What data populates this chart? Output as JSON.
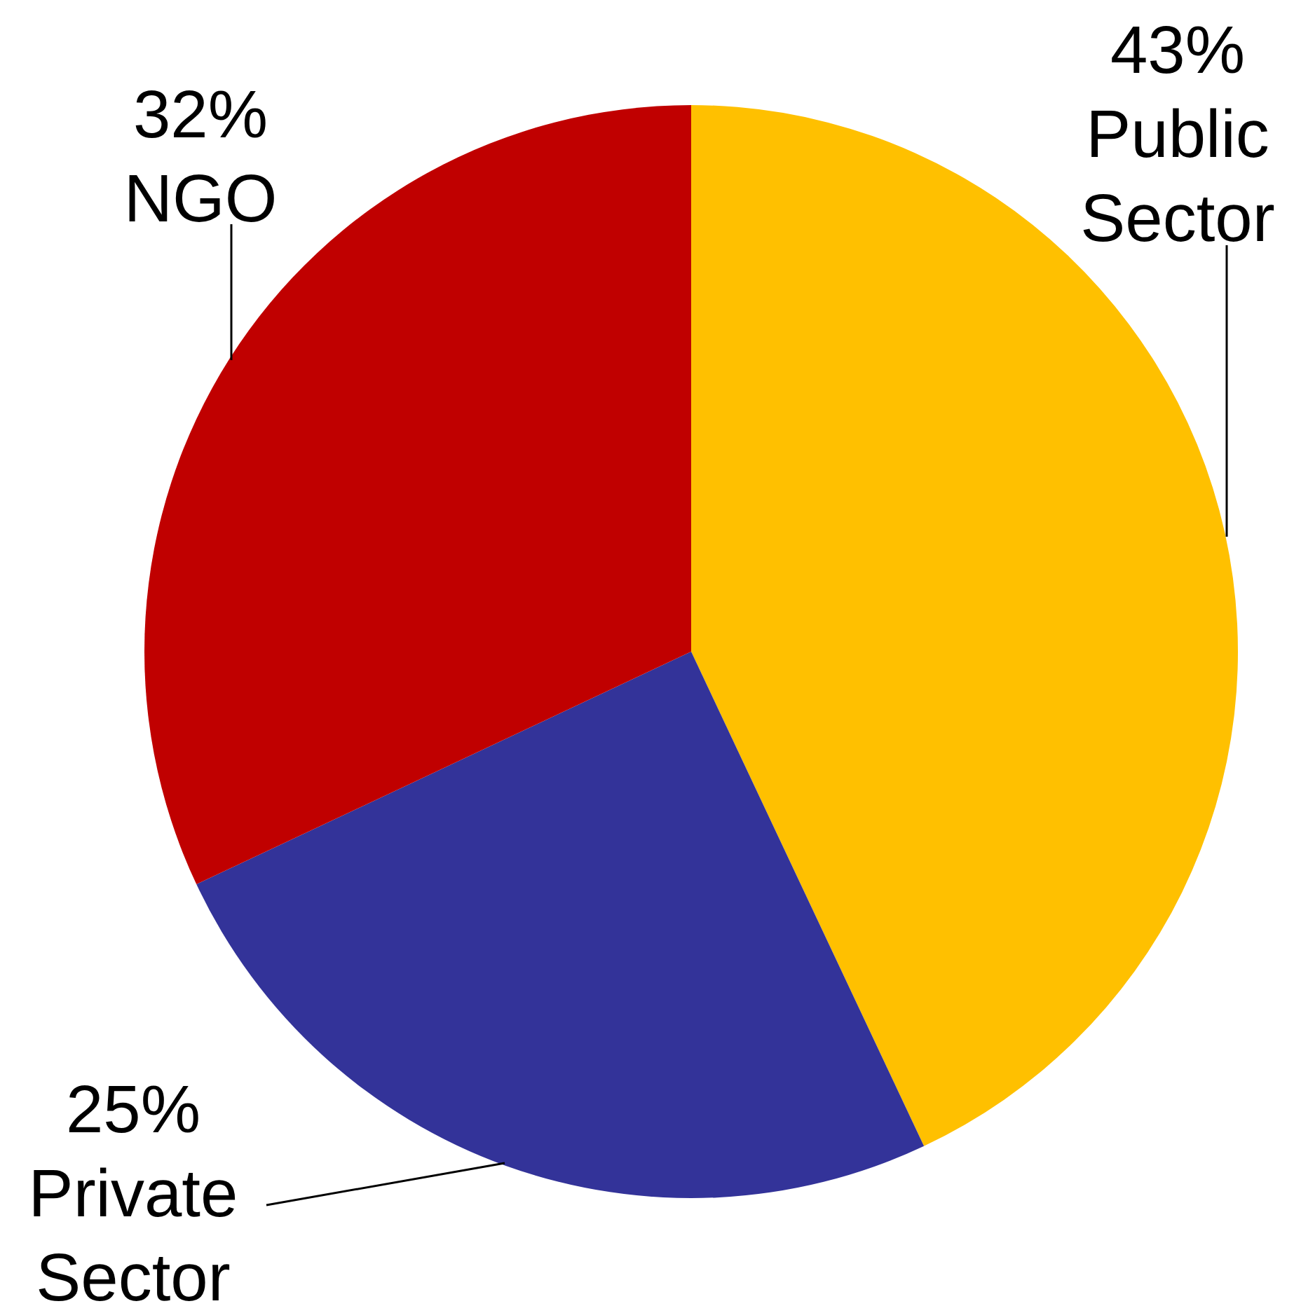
{
  "chart_data": {
    "type": "pie",
    "categories": [
      "Public Sector",
      "Private Sector",
      "NGO"
    ],
    "values": [
      43,
      25,
      32
    ],
    "colors": [
      "#ffc000",
      "#333399",
      "#c00000"
    ],
    "value_labels": [
      "43%",
      "25%",
      "32%"
    ]
  }
}
